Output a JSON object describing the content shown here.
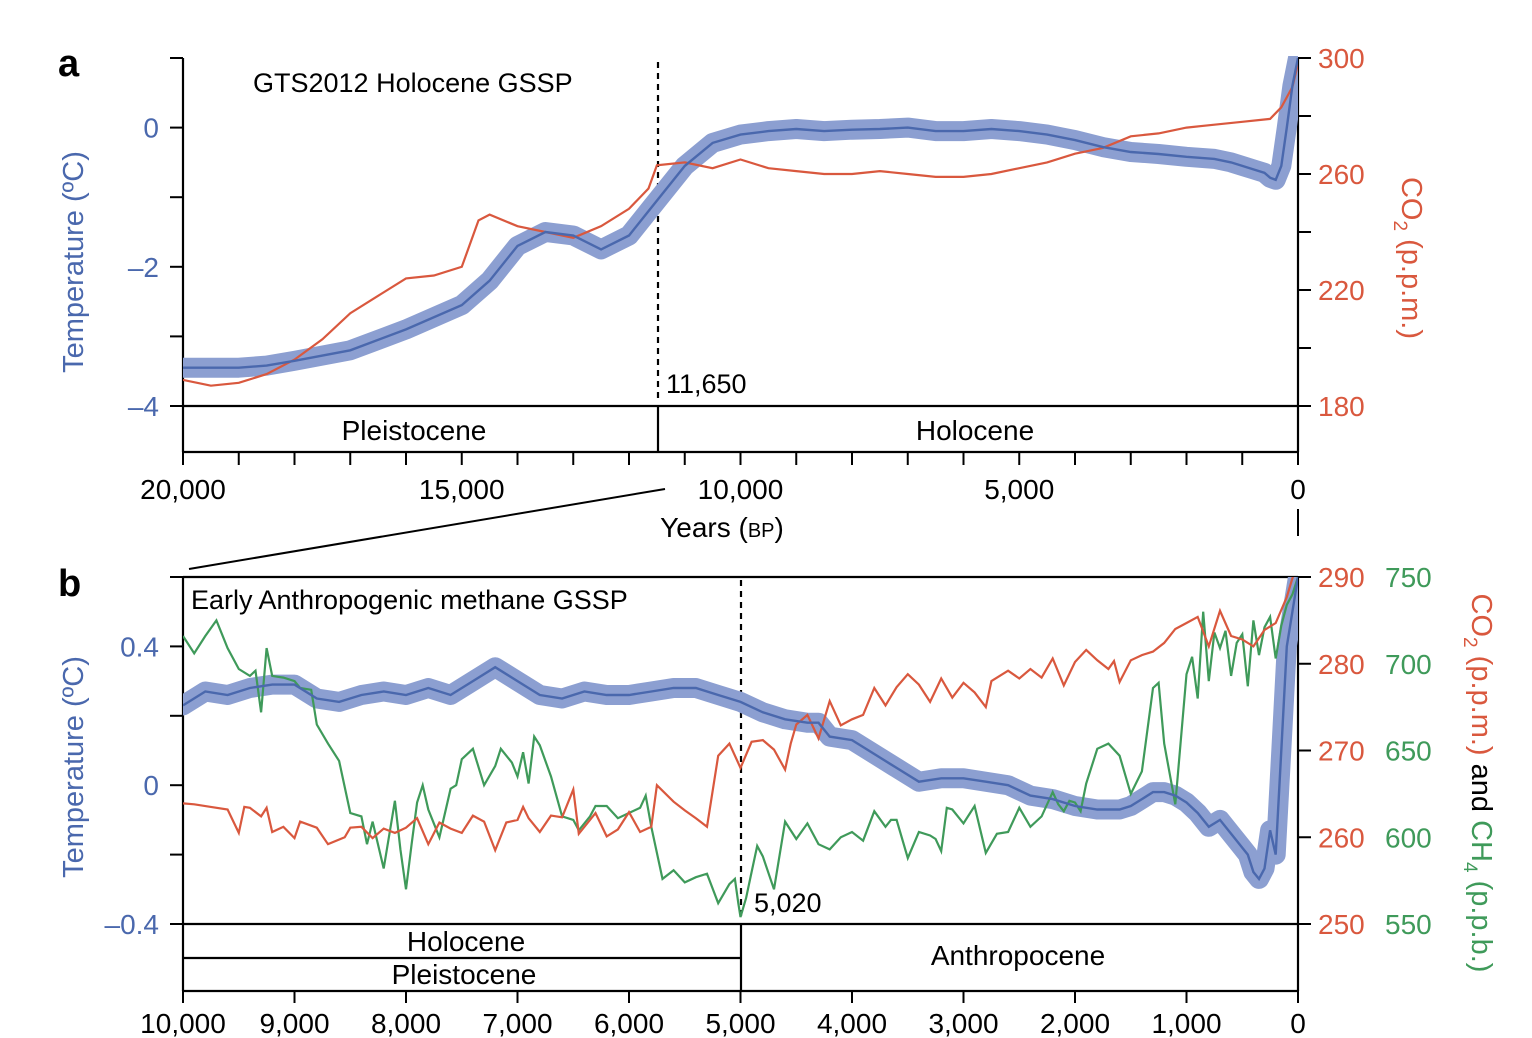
{
  "colors": {
    "temperature": "#4a68ad",
    "temperature_band": "#8c9fd1",
    "co2": "#d9583e",
    "ch4": "#3f9a5a",
    "axis": "#000000"
  },
  "chart_data": [
    {
      "panel_label": "a",
      "type": "line",
      "annotation": "GTS2012 Holocene GSSP",
      "event_year": 11650,
      "event_label": "11,650",
      "xlabel": "Years (BP)",
      "xlabel_main": "Years (",
      "xlabel_bp": "BP",
      "xlabel_close": ")",
      "xlim": [
        20000,
        0
      ],
      "xticks": [
        20000,
        15000,
        10000,
        5000,
        0
      ],
      "xtick_labels": [
        "20,000",
        "15,000",
        "10,000",
        "5,000",
        "0"
      ],
      "ylabel_left": "Temperature (ºC)",
      "ylim_left": [
        -4,
        1
      ],
      "yticks_left": [
        0,
        -2,
        -4
      ],
      "ytick_labels_left": [
        "0",
        "–2",
        "–4"
      ],
      "ylabel_right": "CO2 (p.p.m.)",
      "ylabel_right_parts": [
        "CO",
        "2",
        " (p.p.m.)"
      ],
      "ylim_right": [
        180,
        300
      ],
      "yticks_right": [
        300,
        260,
        220,
        180
      ],
      "ytick_labels_right": [
        "300",
        "260",
        "220",
        "180"
      ],
      "epochs": [
        {
          "name": "Pleistocene",
          "from": 20000,
          "to": 11650
        },
        {
          "name": "Holocene",
          "from": 11650,
          "to": 0
        }
      ],
      "series": [
        {
          "name": "Temperature",
          "axis": "left",
          "x": [
            20000,
            19000,
            18500,
            18000,
            17000,
            16000,
            15000,
            14500,
            14000,
            13500,
            13000,
            12500,
            12000,
            11650,
            11000,
            10500,
            10000,
            9500,
            9000,
            8500,
            8000,
            7500,
            7000,
            6500,
            6000,
            5500,
            5000,
            4500,
            4000,
            3500,
            3000,
            2500,
            2000,
            1500,
            1200,
            1000,
            800,
            600,
            500,
            400,
            300,
            200,
            100,
            0
          ],
          "y": [
            -3.45,
            -3.45,
            -3.42,
            -3.35,
            -3.2,
            -2.9,
            -2.55,
            -2.2,
            -1.7,
            -1.5,
            -1.55,
            -1.75,
            -1.55,
            -1.2,
            -0.55,
            -0.22,
            -0.1,
            -0.05,
            -0.02,
            -0.05,
            -0.03,
            -0.02,
            0.0,
            -0.05,
            -0.05,
            -0.02,
            -0.05,
            -0.1,
            -0.18,
            -0.28,
            -0.35,
            -0.38,
            -0.42,
            -0.45,
            -0.5,
            -0.55,
            -0.6,
            -0.65,
            -0.72,
            -0.75,
            -0.55,
            0.0,
            0.6,
            1.0
          ]
        },
        {
          "name": "CO2",
          "axis": "right",
          "x": [
            20000,
            19500,
            19000,
            18500,
            18000,
            17500,
            17000,
            16500,
            16000,
            15500,
            15000,
            14700,
            14500,
            14000,
            13500,
            13000,
            12500,
            12000,
            11650,
            11500,
            11000,
            10500,
            10000,
            9500,
            9000,
            8500,
            8000,
            7500,
            7000,
            6500,
            6000,
            5500,
            5000,
            4500,
            4000,
            3500,
            3000,
            2500,
            2000,
            1500,
            1000,
            500,
            300,
            100,
            0
          ],
          "y": [
            189,
            187,
            188,
            191,
            196,
            203,
            212,
            218,
            224,
            225,
            228,
            244,
            246,
            242,
            240,
            238,
            242,
            248,
            255,
            263,
            264,
            262,
            265,
            262,
            261,
            260,
            260,
            261,
            260,
            259,
            259,
            260,
            262,
            264,
            267,
            269,
            273,
            274,
            276,
            277,
            278,
            279,
            283,
            290,
            298
          ]
        }
      ]
    },
    {
      "panel_label": "b",
      "type": "line",
      "annotation": "Early Anthropogenic methane GSSP",
      "event_year": 5020,
      "event_label": "5,020",
      "xlim": [
        10000,
        0
      ],
      "xticks": [
        10000,
        9000,
        8000,
        7000,
        6000,
        5000,
        4000,
        3000,
        2000,
        1000,
        0
      ],
      "xtick_labels": [
        "10,000",
        "9,000",
        "8,000",
        "7,000",
        "6,000",
        "5,000",
        "4,000",
        "3,000",
        "2,000",
        "1,000",
        "0"
      ],
      "ylabel_left": "Temperature (ºC)",
      "ylim_left": [
        -0.4,
        0.6
      ],
      "yticks_left": [
        0.4,
        0,
        -0.4
      ],
      "ytick_labels_left": [
        "0.4",
        "0",
        "–0.4"
      ],
      "ylim_co2": [
        250,
        290
      ],
      "yticks_co2": [
        290,
        280,
        270,
        260,
        250
      ],
      "ytick_labels_co2": [
        "290",
        "280",
        "270",
        "260",
        "250"
      ],
      "ylim_ch4": [
        550,
        750
      ],
      "yticks_ch4": [
        750,
        700,
        650,
        600,
        550
      ],
      "ytick_labels_ch4": [
        "750",
        "700",
        "650",
        "600",
        "550"
      ],
      "ylabel_right": "CO2 (p.p.m.) and CH4 (p.p.b.)",
      "ylabel_right_parts": {
        "co2": "CO",
        "co2_sub": "2",
        "co2_unit": " (p.p.m.)",
        "and": " and ",
        "ch4": "CH",
        "ch4_sub": "4",
        "ch4_unit": " (p.p.b.)"
      },
      "epochs": [
        {
          "name": "Holocene",
          "from": 10000,
          "to": 5020
        },
        {
          "name": "Pleistocene",
          "from": 10000,
          "to": 5020
        },
        {
          "name": "Anthropocene",
          "from": 5020,
          "to": 0
        }
      ],
      "series": [
        {
          "name": "Temperature",
          "axis": "left",
          "x": [
            10000,
            9800,
            9600,
            9400,
            9200,
            9000,
            8800,
            8600,
            8400,
            8200,
            8000,
            7800,
            7600,
            7400,
            7200,
            7000,
            6800,
            6600,
            6400,
            6200,
            6000,
            5800,
            5600,
            5400,
            5200,
            5000,
            4800,
            4600,
            4400,
            4300,
            4200,
            4000,
            3800,
            3600,
            3400,
            3200,
            3000,
            2800,
            2600,
            2400,
            2200,
            2000,
            1800,
            1600,
            1500,
            1400,
            1300,
            1200,
            1100,
            1000,
            900,
            800,
            700,
            600,
            500,
            450,
            400,
            350,
            300,
            250,
            200,
            150,
            100,
            50,
            0
          ],
          "y": [
            0.23,
            0.27,
            0.26,
            0.28,
            0.29,
            0.29,
            0.25,
            0.24,
            0.26,
            0.27,
            0.26,
            0.28,
            0.26,
            0.3,
            0.34,
            0.3,
            0.26,
            0.25,
            0.27,
            0.26,
            0.26,
            0.27,
            0.28,
            0.28,
            0.26,
            0.24,
            0.21,
            0.19,
            0.18,
            0.18,
            0.14,
            0.13,
            0.09,
            0.05,
            0.01,
            0.02,
            0.02,
            0.01,
            0.0,
            -0.03,
            -0.04,
            -0.06,
            -0.07,
            -0.07,
            -0.06,
            -0.04,
            -0.02,
            -0.02,
            -0.03,
            -0.05,
            -0.08,
            -0.12,
            -0.1,
            -0.14,
            -0.18,
            -0.2,
            -0.25,
            -0.27,
            -0.24,
            -0.13,
            -0.2,
            0.1,
            0.4,
            0.5,
            0.6
          ]
        },
        {
          "name": "CO2",
          "axis": "co2",
          "x": [
            10000,
            9900,
            9750,
            9600,
            9500,
            9450,
            9400,
            9300,
            9250,
            9200,
            9100,
            9000,
            8950,
            8800,
            8700,
            8550,
            8500,
            8400,
            8300,
            8200,
            8100,
            8000,
            7900,
            7800,
            7700,
            7600,
            7500,
            7400,
            7300,
            7200,
            7100,
            7000,
            6950,
            6900,
            6800,
            6700,
            6600,
            6500,
            6450,
            6300,
            6200,
            6100,
            6000,
            5900,
            5800,
            5750,
            5600,
            5500,
            5400,
            5300,
            5200,
            5100,
            5000,
            4900,
            4800,
            4700,
            4600,
            4550,
            4500,
            4400,
            4300,
            4200,
            4100,
            4000,
            3900,
            3800,
            3700,
            3600,
            3500,
            3400,
            3300,
            3200,
            3100,
            3000,
            2900,
            2800,
            2750,
            2600,
            2500,
            2400,
            2300,
            2200,
            2100,
            2000,
            1900,
            1800,
            1700,
            1650,
            1600,
            1500,
            1400,
            1300,
            1200,
            1100,
            1000,
            900,
            800,
            700,
            600,
            500,
            400,
            300,
            200,
            100,
            0
          ],
          "y": [
            263.9,
            263.8,
            263.5,
            263.2,
            260.5,
            263.5,
            263.4,
            262.4,
            263.4,
            260.6,
            261.2,
            259.9,
            261.8,
            261.1,
            259.2,
            260.0,
            261.1,
            261.2,
            259.9,
            261.0,
            260.5,
            261.1,
            262.2,
            259.2,
            261.7,
            261.0,
            260.5,
            262.5,
            261.8,
            258.5,
            261.7,
            262.0,
            263.5,
            262.2,
            260.6,
            262.5,
            262.3,
            265.5,
            260.4,
            262.8,
            260.1,
            260.9,
            262.9,
            260.6,
            261.2,
            266.0,
            264.1,
            263.1,
            262.2,
            261.2,
            269.4,
            270.8,
            268.0,
            271.0,
            271.2,
            270.1,
            267.8,
            270.8,
            273.0,
            274.1,
            271.4,
            275.7,
            272.9,
            273.6,
            274.1,
            277.2,
            275.2,
            277.3,
            278.8,
            277.6,
            275.6,
            278.3,
            276.1,
            277.8,
            276.7,
            275.0,
            278.0,
            279.2,
            278.3,
            279.4,
            278.4,
            280.6,
            277.5,
            280.2,
            281.6,
            280.4,
            279.4,
            280.3,
            277.9,
            280.4,
            281.0,
            281.4,
            282.4,
            284.0,
            284.7,
            285.4,
            282.0,
            286.1,
            283.2,
            282.8,
            282.0,
            283.9,
            284.7,
            287.7,
            292.0
          ]
        },
        {
          "name": "CH4",
          "axis": "ch4",
          "x": [
            10000,
            9900,
            9800,
            9700,
            9600,
            9500,
            9400,
            9350,
            9300,
            9250,
            9200,
            9100,
            9000,
            8950,
            8850,
            8800,
            8700,
            8600,
            8500,
            8400,
            8350,
            8300,
            8200,
            8100,
            8050,
            8000,
            7950,
            7900,
            7850,
            7800,
            7700,
            7600,
            7550,
            7500,
            7400,
            7300,
            7200,
            7150,
            7050,
            7000,
            6950,
            6900,
            6850,
            6800,
            6700,
            6600,
            6500,
            6450,
            6350,
            6300,
            6200,
            6100,
            6000,
            5900,
            5850,
            5800,
            5700,
            5600,
            5500,
            5400,
            5300,
            5200,
            5100,
            5050,
            5020,
            5000,
            4950,
            4900,
            4850,
            4800,
            4700,
            4600,
            4500,
            4400,
            4300,
            4200,
            4100,
            4000,
            3900,
            3800,
            3700,
            3650,
            3600,
            3500,
            3400,
            3300,
            3250,
            3200,
            3150,
            3100,
            3000,
            2900,
            2800,
            2700,
            2600,
            2500,
            2400,
            2300,
            2200,
            2150,
            2100,
            2050,
            2000,
            1950,
            1900,
            1800,
            1700,
            1600,
            1500,
            1400,
            1300,
            1250,
            1200,
            1100,
            1000,
            950,
            900,
            850,
            800,
            750,
            700,
            650,
            600,
            550,
            500,
            450,
            400,
            350,
            300,
            250,
            200,
            150,
            100,
            50,
            0
          ],
          "y": [
            716,
            706,
            716,
            725,
            709,
            697,
            693,
            696,
            672,
            709,
            693,
            692,
            690,
            686,
            685,
            665,
            654,
            644,
            614,
            612,
            596,
            609,
            582,
            621,
            593,
            570,
            596,
            620,
            630,
            616,
            600,
            628,
            630,
            645,
            651,
            630,
            641,
            651,
            643,
            635,
            649,
            631,
            658,
            653,
            635,
            612,
            610,
            604,
            612,
            618,
            618,
            611,
            614,
            617,
            624,
            606,
            576,
            581,
            574,
            577,
            579,
            562,
            573,
            576,
            562,
            554,
            565,
            580,
            595,
            589,
            570,
            609,
            599,
            608,
            596,
            593,
            600,
            603,
            598,
            615,
            606,
            610,
            610,
            588,
            603,
            601,
            599,
            592,
            617,
            616,
            608,
            618,
            591,
            602,
            603,
            617,
            606,
            612,
            626,
            619,
            615,
            621,
            620,
            615,
            631,
            651,
            654,
            647,
            625,
            638,
            686,
            689,
            654,
            619,
            694,
            704,
            680,
            730,
            690,
            718,
            709,
            719,
            693,
            712,
            717,
            687,
            725,
            705,
            721,
            727,
            703,
            722,
            734,
            740,
            750
          ]
        }
      ]
    }
  ]
}
